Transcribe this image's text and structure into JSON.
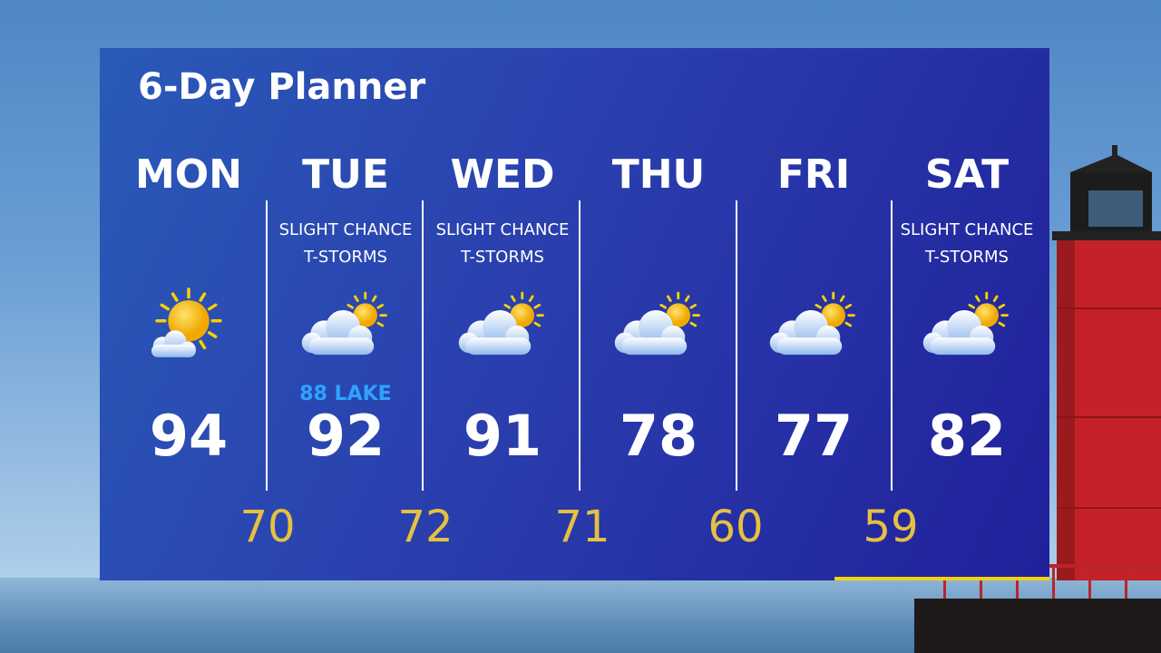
{
  "title": "6-Day Planner",
  "colors": {
    "panel": "#2a3fae",
    "low_temp": "#e6c040",
    "lake_note": "#2ea3ff",
    "accent_bar": "#f5d10f"
  },
  "days": [
    {
      "name": "MON",
      "condition1": "",
      "condition2": "",
      "icon": "mostly-sunny-icon",
      "lake": "",
      "high": "94"
    },
    {
      "name": "TUE",
      "condition1": "SLIGHT CHANCE",
      "condition2": "T-STORMS",
      "icon": "partly-cloudy-icon",
      "lake": "88 LAKE",
      "high": "92"
    },
    {
      "name": "WED",
      "condition1": "SLIGHT CHANCE",
      "condition2": "T-STORMS",
      "icon": "partly-cloudy-icon",
      "lake": "",
      "high": "91"
    },
    {
      "name": "THU",
      "condition1": "",
      "condition2": "",
      "icon": "partly-cloudy-icon",
      "lake": "",
      "high": "78"
    },
    {
      "name": "FRI",
      "condition1": "",
      "condition2": "",
      "icon": "partly-cloudy-icon",
      "lake": "",
      "high": "77"
    },
    {
      "name": "SAT",
      "condition1": "SLIGHT CHANCE",
      "condition2": "T-STORMS",
      "icon": "partly-cloudy-icon",
      "lake": "",
      "high": "82"
    }
  ],
  "lows": [
    "70",
    "72",
    "71",
    "60",
    "59"
  ]
}
